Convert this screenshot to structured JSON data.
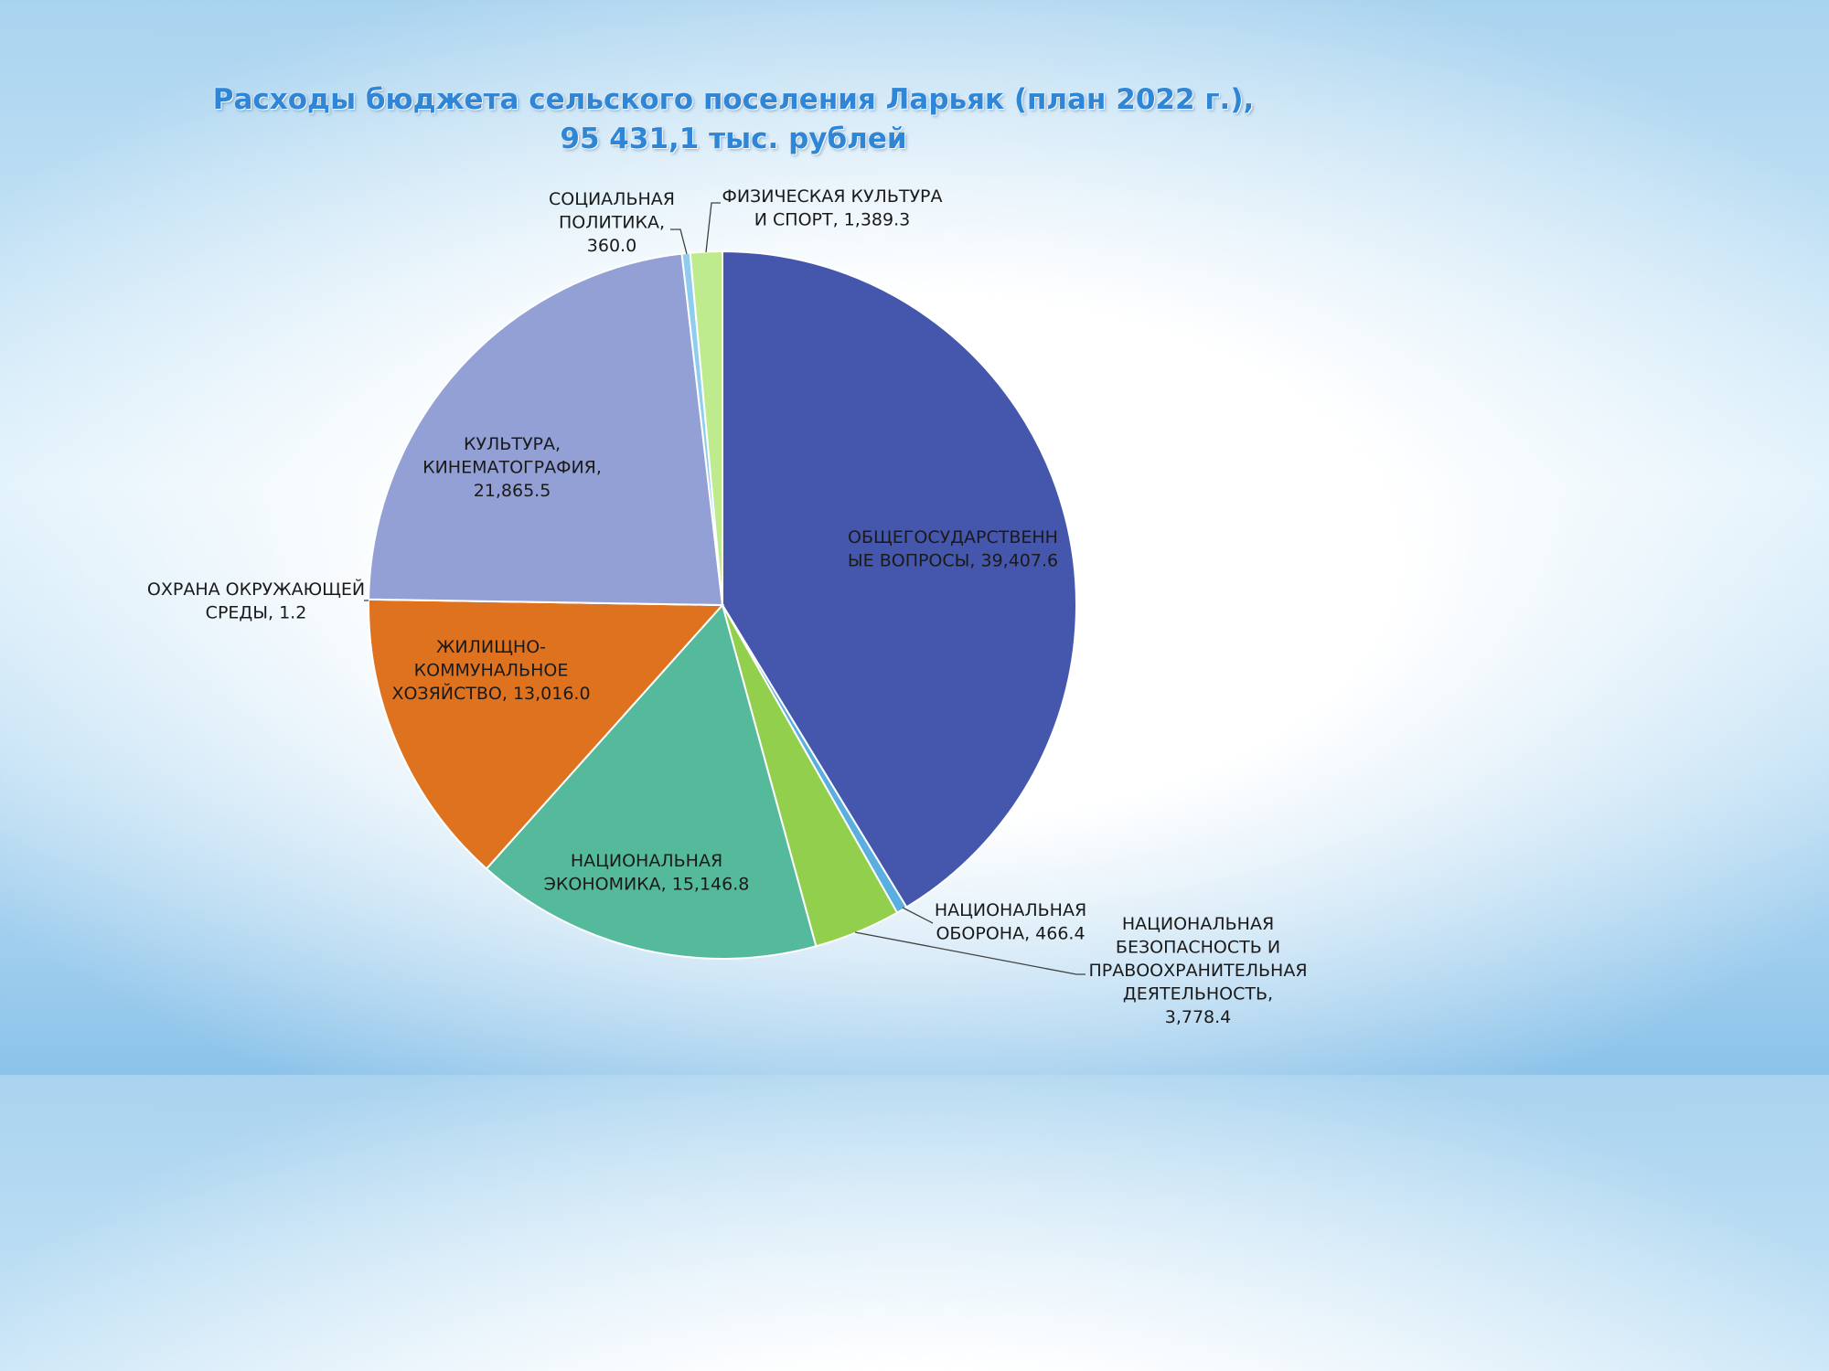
{
  "title": {
    "line1": "Расходы бюджета сельского поселения Ларьяк (план 2022 г.),",
    "line2": "95 431,1 тыс. рублей"
  },
  "chart_data": {
    "type": "pie",
    "title": "Расходы бюджета сельского поселения Ларьяк (план 2022 г.), 95 431,1 тыс. рублей",
    "total": 95431.1,
    "slices": [
      {
        "label_lines": [
          "ОБЩЕГОСУДАРСТВЕНН",
          "ЫЕ ВОПРОСЫ, 39,407.6"
        ],
        "value": 39407.6,
        "color": "#4557ad"
      },
      {
        "label_lines": [
          "НАЦИОНАЛЬНАЯ",
          "ОБОРОНА, 466.4"
        ],
        "value": 466.4,
        "color": "#5aaee0"
      },
      {
        "label_lines": [
          "НАЦИОНАЛЬНАЯ",
          "БЕЗОПАСНОСТЬ И",
          "ПРАВООХРАНИТЕЛЬНАЯ",
          "ДЕЯТЕЛЬНОСТЬ,",
          "3,778.4"
        ],
        "value": 3778.4,
        "color": "#92cf4c"
      },
      {
        "label_lines": [
          "НАЦИОНАЛЬНАЯ",
          "ЭКОНОМИКА, 15,146.8"
        ],
        "value": 15146.8,
        "color": "#55b99b"
      },
      {
        "label_lines": [
          "ЖИЛИЩНО-",
          "КОММУНАЛЬНОЕ",
          "ХОЗЯЙСТВО, 13,016.0"
        ],
        "value": 13016.0,
        "color": "#df721e"
      },
      {
        "label_lines": [
          "ОХРАНА ОКРУЖАЮЩЕЙ",
          "СРЕДЫ, 1.2"
        ],
        "value": 1.2,
        "color": "#d6d6d6"
      },
      {
        "label_lines": [
          "КУЛЬТУРА,",
          "КИНЕМАТОГРАФИЯ,",
          "21,865.5"
        ],
        "value": 21865.5,
        "color": "#93a0d6"
      },
      {
        "label_lines": [
          "СОЦИАЛЬНАЯ",
          "ПОЛИТИКА,",
          "360.0"
        ],
        "value": 360.0,
        "color": "#8fcdee"
      },
      {
        "label_lines": [
          "ФИЗИЧЕСКАЯ КУЛЬТУРА",
          "И СПОРТ, 1,389.3"
        ],
        "value": 1389.3,
        "color": "#bfeb8f"
      }
    ]
  }
}
